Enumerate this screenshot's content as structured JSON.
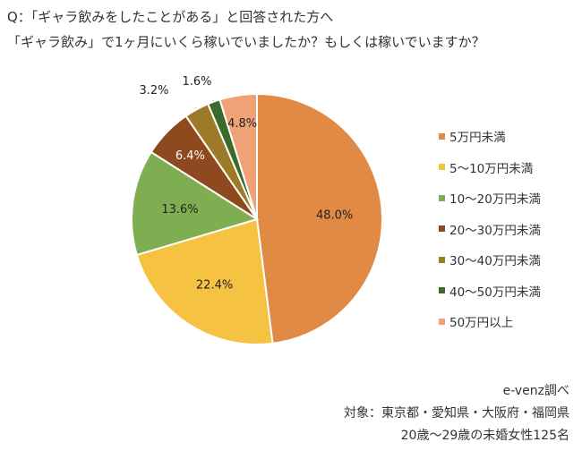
{
  "question": {
    "line1": "Q：「ギャラ飲みをしたことがある」と回答された方へ",
    "line2": "「ギャラ飲み」で1ヶ月にいくら稼いでいましたか？もしくは稼いでいますか？"
  },
  "chart_data": {
    "type": "pie",
    "categories": [
      "5万円未満",
      "5～10万円未満",
      "10～20万円未満",
      "20～30万円未満",
      "30～40万円未満",
      "40～50万円未満",
      "50万円以上"
    ],
    "values": [
      48.0,
      22.4,
      13.6,
      6.4,
      3.2,
      1.6,
      4.8
    ],
    "value_labels": [
      "48.0%",
      "22.4%",
      "13.6%",
      "6.4%",
      "3.2%",
      "1.6%",
      "4.8%"
    ],
    "colors": [
      "#E08A45",
      "#F5C242",
      "#7FAE52",
      "#8E4A1E",
      "#9C7A27",
      "#3C6A2A",
      "#EFA276"
    ],
    "legend_position": "right",
    "start_angle": "12 o'clock, clockwise"
  },
  "footer": {
    "source": "e-venz調べ",
    "target": "対象：東京都・愛知県・大阪府・福岡県",
    "sample": "20歳～29歳の未婚女性125名"
  }
}
